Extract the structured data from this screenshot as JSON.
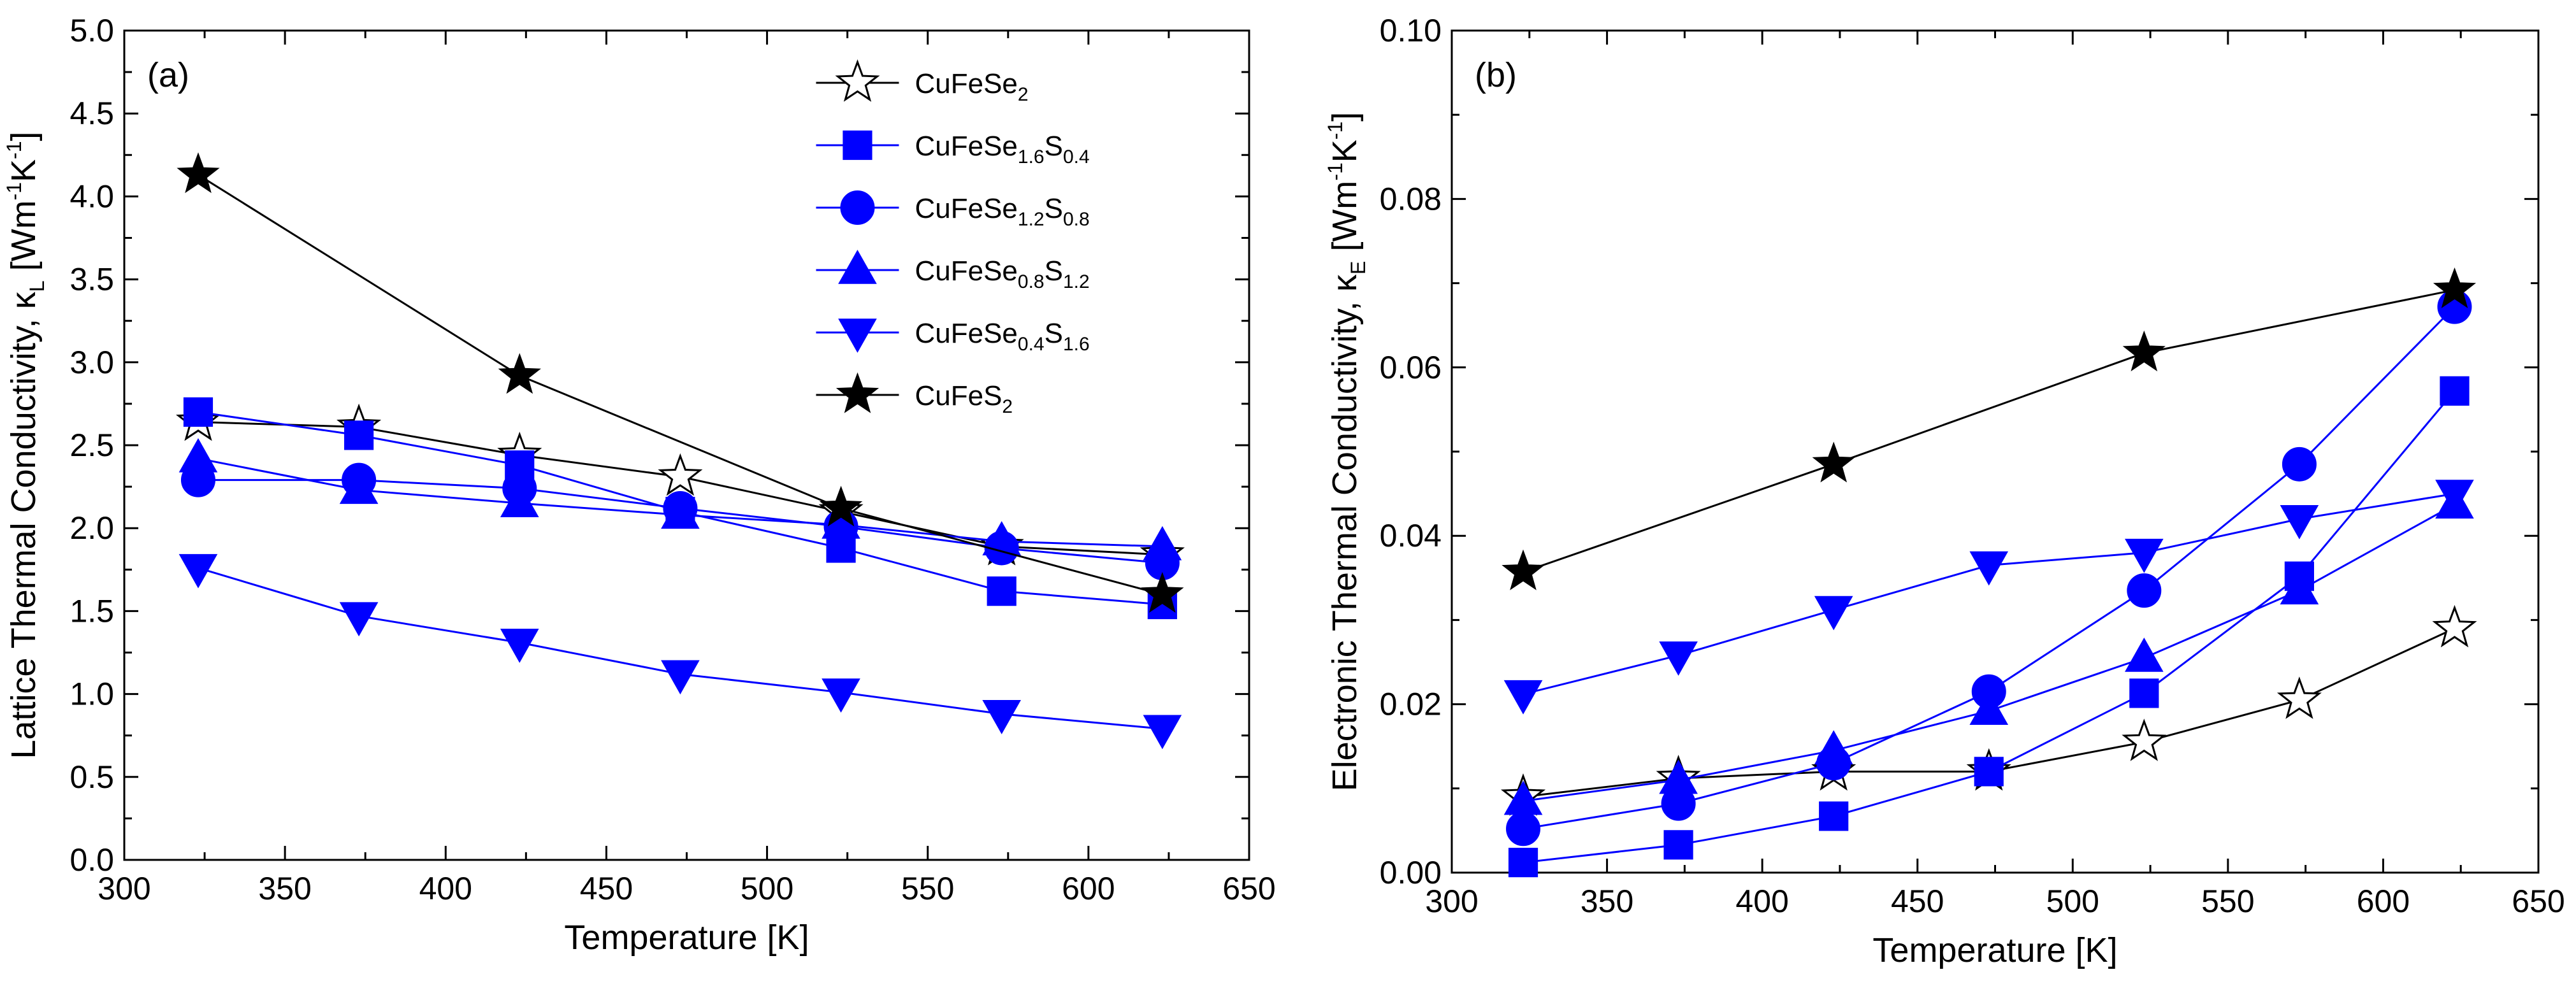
{
  "chart_data": [
    {
      "panel_label": "(a)",
      "type": "line",
      "xlabel": "Temperature [K]",
      "ylabel_prefix": "Lattice Thermal Conductivity, κ",
      "ylabel_sub": "L",
      "ylabel_bracket": " [Wm",
      "ylabel_sup1": "-1",
      "ylabel_k": "K",
      "ylabel_sup2": "-1",
      "ylabel_end": "]",
      "xlim": [
        300,
        650
      ],
      "ylim": [
        0.0,
        5.0
      ],
      "xticks": [
        "300",
        "350",
        "400",
        "450",
        "500",
        "550",
        "600",
        "650"
      ],
      "yticks": [
        "0.0",
        "0.5",
        "1.0",
        "1.5",
        "2.0",
        "2.5",
        "3.0",
        "3.5",
        "4.0",
        "4.5",
        "5.0"
      ],
      "legend_position": "top-right",
      "x": [
        323,
        373,
        423,
        473,
        523,
        573,
        623
      ],
      "series": [
        {
          "name": "CuFeSe2",
          "name_parts": [
            [
              "CuFeSe",
              "n"
            ],
            [
              "2",
              "s"
            ]
          ],
          "color": "#000000",
          "marker": "star-open",
          "values": [
            2.64,
            2.61,
            2.44,
            2.31,
            2.1,
            1.89,
            1.84
          ]
        },
        {
          "name": "CuFeSe1.6S0.4",
          "name_parts": [
            [
              "CuFeSe",
              "n"
            ],
            [
              "1.6",
              "s"
            ],
            [
              "S",
              "n"
            ],
            [
              "0.4",
              "s"
            ]
          ],
          "color": "#0000FF",
          "marker": "square",
          "values": [
            2.7,
            2.56,
            2.38,
            2.1,
            1.88,
            1.62,
            1.54
          ]
        },
        {
          "name": "CuFeSe1.2S0.8",
          "name_parts": [
            [
              "CuFeSe",
              "n"
            ],
            [
              "1.2",
              "s"
            ],
            [
              "S",
              "n"
            ],
            [
              "0.8",
              "s"
            ]
          ],
          "color": "#0000FF",
          "marker": "circle",
          "values": [
            2.29,
            2.29,
            2.24,
            2.12,
            2.01,
            1.88,
            1.79
          ]
        },
        {
          "name": "CuFeSe0.8S1.2",
          "name_parts": [
            [
              "CuFeSe",
              "n"
            ],
            [
              "0.8",
              "s"
            ],
            [
              "S",
              "n"
            ],
            [
              "1.2",
              "s"
            ]
          ],
          "color": "#0000FF",
          "marker": "triangle-up",
          "values": [
            2.42,
            2.23,
            2.15,
            2.08,
            2.02,
            1.92,
            1.89
          ]
        },
        {
          "name": "CuFeSe0.4S1.6",
          "name_parts": [
            [
              "CuFeSe",
              "n"
            ],
            [
              "0.4",
              "s"
            ],
            [
              "S",
              "n"
            ],
            [
              "1.6",
              "s"
            ]
          ],
          "color": "#0000FF",
          "marker": "triangle-down",
          "values": [
            1.76,
            1.47,
            1.31,
            1.12,
            1.01,
            0.88,
            0.79
          ]
        },
        {
          "name": "CuFeS2",
          "name_parts": [
            [
              "CuFeS",
              "n"
            ],
            [
              "2",
              "s"
            ]
          ],
          "color": "#000000",
          "marker": "star-filled",
          "values": [
            4.13,
            null,
            2.92,
            null,
            2.12,
            null,
            1.6
          ]
        }
      ]
    },
    {
      "panel_label": "(b)",
      "type": "line",
      "xlabel": "Temperature [K]",
      "ylabel_prefix": "Electronic Thermal Conductivity, κ",
      "ylabel_sub": "E",
      "ylabel_bracket": " [Wm",
      "ylabel_sup1": "-1",
      "ylabel_k": "K",
      "ylabel_sup2": "-1",
      "ylabel_end": "]",
      "xlim": [
        300,
        650
      ],
      "ylim": [
        0.0,
        0.1
      ],
      "xticks": [
        "300",
        "350",
        "400",
        "450",
        "500",
        "550",
        "600",
        "650"
      ],
      "yticks": [
        "0.00",
        "0.02",
        "0.04",
        "0.06",
        "0.08",
        "0.10"
      ],
      "x": [
        323,
        373,
        423,
        473,
        523,
        573,
        623
      ],
      "series": [
        {
          "name": "CuFeSe2",
          "color": "#000000",
          "marker": "star-open",
          "values": [
            0.009,
            0.0112,
            0.012,
            0.012,
            0.0155,
            0.0205,
            0.029
          ]
        },
        {
          "name": "CuFeSe1.6S0.4",
          "color": "#0000FF",
          "marker": "square",
          "values": [
            0.0012,
            0.0033,
            0.0067,
            0.012,
            0.0213,
            0.0352,
            0.0572
          ]
        },
        {
          "name": "CuFeSe1.2S0.8",
          "color": "#0000FF",
          "marker": "circle",
          "values": [
            0.0052,
            0.0082,
            0.013,
            0.0215,
            0.0335,
            0.0485,
            0.0672
          ]
        },
        {
          "name": "CuFeSe0.8S1.2",
          "color": "#0000FF",
          "marker": "triangle-up",
          "values": [
            0.0085,
            0.011,
            0.0145,
            0.0192,
            0.0255,
            0.0335,
            0.0437
          ]
        },
        {
          "name": "CuFeSe0.4S1.6",
          "color": "#0000FF",
          "marker": "triangle-down",
          "values": [
            0.0212,
            0.0258,
            0.0312,
            0.0365,
            0.038,
            0.042,
            0.045
          ]
        },
        {
          "name": "CuFeS2",
          "color": "#000000",
          "marker": "star-filled",
          "values": [
            0.0357,
            null,
            0.0485,
            null,
            0.0617,
            null,
            0.0692
          ]
        }
      ]
    }
  ]
}
